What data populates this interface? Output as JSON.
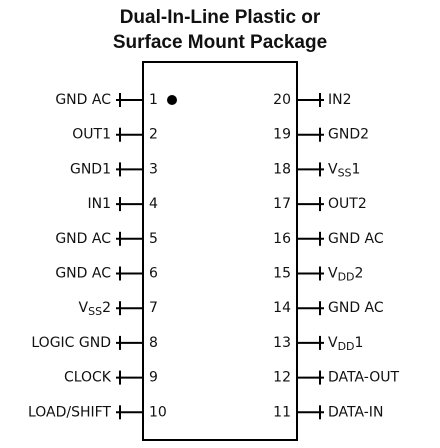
{
  "title": [
    "Dual-In-Line Plastic or",
    "Surface Mount Package"
  ],
  "pins": {
    "left": [
      {
        "number": "1",
        "label": "GND AC"
      },
      {
        "number": "2",
        "label": "OUT1"
      },
      {
        "number": "3",
        "label": "GND1"
      },
      {
        "number": "4",
        "label": "IN1"
      },
      {
        "number": "5",
        "label": "GND AC"
      },
      {
        "number": "6",
        "label": "GND AC"
      },
      {
        "number": "7",
        "label": {
          "base": "V",
          "sub": "SS",
          "tail": "2"
        }
      },
      {
        "number": "8",
        "label": "LOGIC GND"
      },
      {
        "number": "9",
        "label": "CLOCK"
      },
      {
        "number": "10",
        "label": "LOAD/SHIFT"
      }
    ],
    "right": [
      {
        "number": "20",
        "label": "IN2"
      },
      {
        "number": "19",
        "label": "GND2"
      },
      {
        "number": "18",
        "label": {
          "base": "V",
          "sub": "SS",
          "tail": "1"
        }
      },
      {
        "number": "17",
        "label": "OUT2"
      },
      {
        "number": "16",
        "label": "GND AC"
      },
      {
        "number": "15",
        "label": {
          "base": "V",
          "sub": "DD",
          "tail": "2"
        }
      },
      {
        "number": "14",
        "label": "GND AC"
      },
      {
        "number": "13",
        "label": {
          "base": "V",
          "sub": "DD",
          "tail": "1"
        }
      },
      {
        "number": "12",
        "label": "DATA-OUT"
      },
      {
        "number": "11",
        "label": "DATA-IN"
      }
    ]
  }
}
